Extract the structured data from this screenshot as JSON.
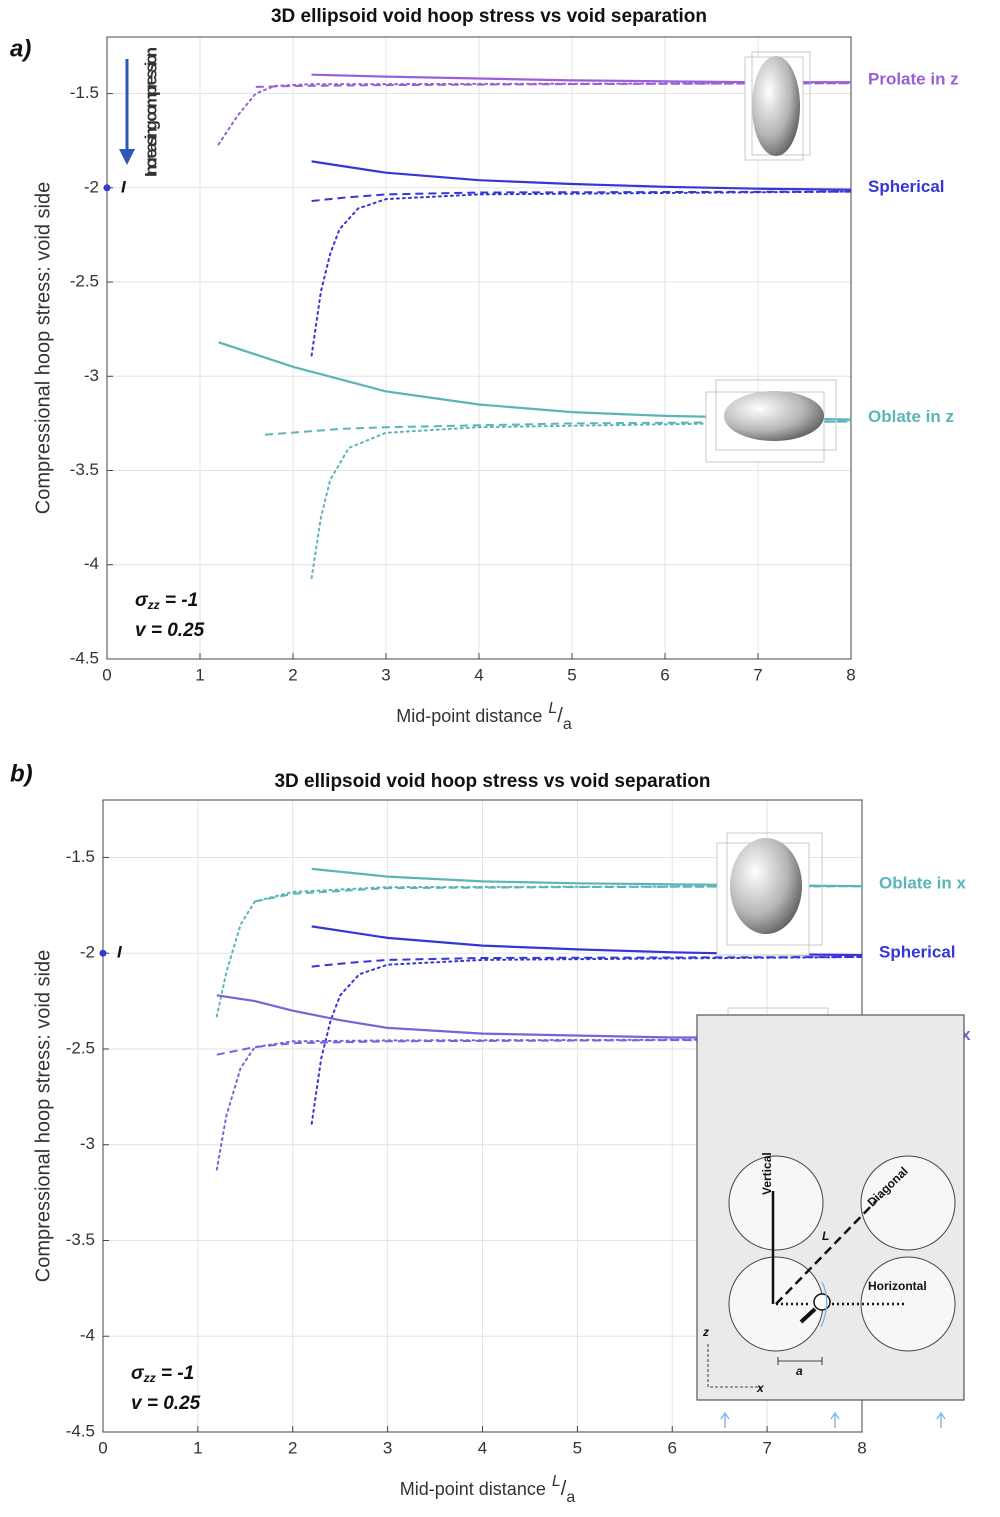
{
  "chart_data": [
    {
      "type": "line",
      "panel": "a)",
      "title": "3D ellipsoid void hoop stress vs void separation",
      "xlabel": {
        "text": "Mid-point distance",
        "num": "L",
        "slash": "/",
        "den": "a"
      },
      "ylabel": "Compressional hoop stress: void side",
      "xlim": [
        0,
        8
      ],
      "ylim": [
        -4.5,
        -1.2
      ],
      "xticks": [
        0,
        1,
        2,
        3,
        4,
        5,
        6,
        7,
        8
      ],
      "yticks": [
        -4.5,
        -4,
        -3.5,
        -3,
        -2.5,
        -2,
        -1.5
      ],
      "grid": true,
      "annotation": "Increasing compression",
      "sigma": {
        "symbol": "σ",
        "subscript": "zz",
        "rest": " = -1"
      },
      "nu": "v = 0.25",
      "points": [
        {
          "x": 0,
          "value": -2,
          "label": "I",
          "color": "#3636d6"
        }
      ],
      "groups": [
        {
          "name": "Prolate in z",
          "color": "#9a5fd8",
          "curves": [
            {
              "style": "solid",
              "x": [
                2.2,
                3,
                4,
                5,
                6,
                7,
                8
              ],
              "values": [
                -1.4,
                -1.41,
                -1.42,
                -1.43,
                -1.435,
                -1.44,
                -1.44
              ]
            },
            {
              "style": "dashed",
              "x": [
                1.6,
                2,
                3,
                5,
                8
              ],
              "values": [
                -1.465,
                -1.46,
                -1.455,
                -1.45,
                -1.445
              ]
            },
            {
              "style": "dotted",
              "x": [
                1.2,
                1.4,
                1.6,
                1.8,
                2.2,
                3,
                8
              ],
              "values": [
                -1.77,
                -1.62,
                -1.5,
                -1.46,
                -1.45,
                -1.45,
                -1.445
              ]
            }
          ]
        },
        {
          "name": "Spherical",
          "color": "#3636d6",
          "curves": [
            {
              "style": "solid",
              "x": [
                2.2,
                3,
                4,
                5,
                6,
                7,
                8
              ],
              "values": [
                -1.86,
                -1.92,
                -1.96,
                -1.98,
                -1.995,
                -2.005,
                -2.01
              ]
            },
            {
              "style": "dashed",
              "x": [
                2.2,
                2.6,
                3,
                4,
                8
              ],
              "values": [
                -2.07,
                -2.05,
                -2.035,
                -2.025,
                -2.02
              ]
            },
            {
              "style": "dotted",
              "x": [
                2.2,
                2.3,
                2.4,
                2.5,
                2.7,
                3,
                4,
                8
              ],
              "values": [
                -2.89,
                -2.55,
                -2.35,
                -2.22,
                -2.11,
                -2.06,
                -2.035,
                -2.02
              ]
            }
          ]
        },
        {
          "name": "Oblate in z",
          "color": "#5bb5b8",
          "curves": [
            {
              "style": "solid",
              "x": [
                1.2,
                2,
                3,
                4,
                5,
                6,
                7,
                8
              ],
              "values": [
                -2.82,
                -2.95,
                -3.08,
                -3.15,
                -3.19,
                -3.21,
                -3.22,
                -3.23
              ]
            },
            {
              "style": "dashed",
              "x": [
                1.7,
                2.5,
                3,
                5,
                8
              ],
              "values": [
                -3.31,
                -3.28,
                -3.27,
                -3.25,
                -3.24
              ]
            },
            {
              "style": "dotted",
              "x": [
                2.2,
                2.3,
                2.4,
                2.6,
                3,
                4,
                8
              ],
              "values": [
                -4.07,
                -3.75,
                -3.55,
                -3.38,
                -3.3,
                -3.27,
                -3.24
              ]
            }
          ]
        }
      ]
    },
    {
      "type": "line",
      "panel": "b)",
      "title": "3D ellipsoid void hoop stress vs void separation",
      "xlabel": {
        "text": "Mid-point distance",
        "num": "L",
        "slash": "/",
        "den": "a"
      },
      "ylabel": "Compressional hoop stress: void side",
      "xlim": [
        0,
        8
      ],
      "ylim": [
        -4.5,
        -1.2
      ],
      "xticks": [
        0,
        1,
        2,
        3,
        4,
        5,
        6,
        7,
        8
      ],
      "yticks": [
        -4.5,
        -4,
        -3.5,
        -3,
        -2.5,
        -2,
        -1.5
      ],
      "grid": true,
      "sigma": {
        "symbol": "σ",
        "subscript": "zz",
        "rest": " = -1"
      },
      "nu": "v = 0.25",
      "points": [
        {
          "x": 0,
          "value": -2,
          "label": "I",
          "color": "#3636d6"
        }
      ],
      "inset": {
        "vertical": "Vertical",
        "diagonal": "Diagonal",
        "length": "L",
        "horizontal": "Horizontal",
        "z": "z",
        "x": "x",
        "a": "a"
      },
      "groups": [
        {
          "name": "Oblate in x",
          "color": "#5bb5b8",
          "curves": [
            {
              "style": "solid",
              "x": [
                2.2,
                3,
                4,
                5,
                6,
                8
              ],
              "values": [
                -1.56,
                -1.6,
                -1.625,
                -1.635,
                -1.64,
                -1.65
              ]
            },
            {
              "style": "dashed",
              "x": [
                1.6,
                2,
                3,
                5,
                8
              ],
              "values": [
                -1.73,
                -1.69,
                -1.66,
                -1.655,
                -1.65
              ]
            },
            {
              "style": "dotted",
              "x": [
                1.2,
                1.3,
                1.45,
                1.6,
                2,
                3,
                8
              ],
              "values": [
                -2.33,
                -2.1,
                -1.85,
                -1.73,
                -1.68,
                -1.655,
                -1.65
              ]
            }
          ]
        },
        {
          "name": "Spherical",
          "color": "#3636d6",
          "curves": [
            {
              "style": "solid",
              "x": [
                2.2,
                3,
                4,
                5,
                6,
                7,
                8
              ],
              "values": [
                -1.86,
                -1.92,
                -1.96,
                -1.98,
                -1.995,
                -2.005,
                -2.01
              ]
            },
            {
              "style": "dashed",
              "x": [
                2.2,
                2.6,
                3,
                4,
                8
              ],
              "values": [
                -2.07,
                -2.05,
                -2.035,
                -2.025,
                -2.02
              ]
            },
            {
              "style": "dotted",
              "x": [
                2.2,
                2.3,
                2.4,
                2.5,
                2.7,
                3,
                4,
                8
              ],
              "values": [
                -2.89,
                -2.55,
                -2.35,
                -2.22,
                -2.11,
                -2.06,
                -2.035,
                -2.02
              ]
            }
          ]
        },
        {
          "name": "Prolate in x",
          "color": "#7a62d8",
          "curves": [
            {
              "style": "solid",
              "x": [
                1.2,
                1.6,
                2,
                2.5,
                3,
                4,
                6,
                8
              ],
              "values": [
                -2.22,
                -2.25,
                -2.3,
                -2.35,
                -2.39,
                -2.42,
                -2.44,
                -2.44
              ]
            },
            {
              "style": "dashed",
              "x": [
                1.2,
                1.6,
                2,
                3,
                8
              ],
              "values": [
                -2.53,
                -2.49,
                -2.47,
                -2.46,
                -2.45
              ]
            },
            {
              "style": "dotted",
              "x": [
                1.2,
                1.3,
                1.45,
                1.6,
                2,
                3,
                8
              ],
              "values": [
                -3.13,
                -2.85,
                -2.6,
                -2.49,
                -2.46,
                -2.455,
                -2.45
              ]
            }
          ]
        }
      ]
    }
  ]
}
